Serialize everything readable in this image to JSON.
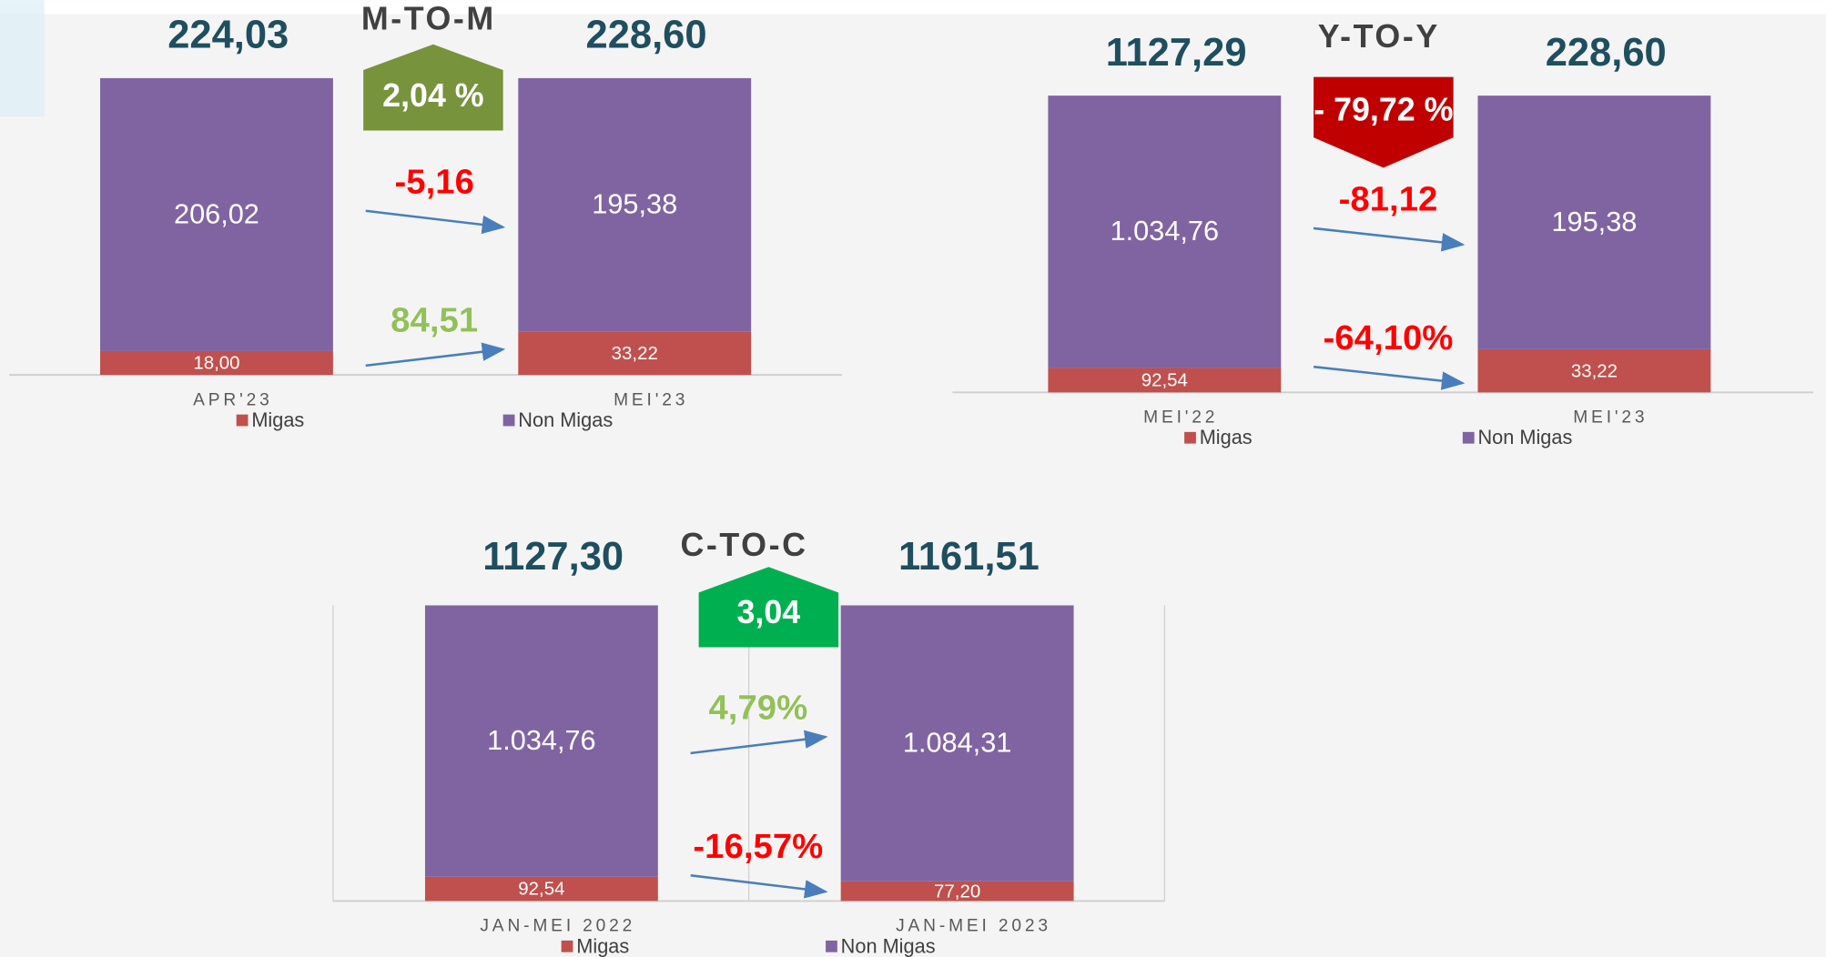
{
  "chart_data": [
    {
      "type": "bar",
      "stacked100": true,
      "title": "M-TO-M",
      "categories": [
        "APR'23",
        "MEI'23"
      ],
      "series": [
        {
          "name": "Migas",
          "color": "#c0504d",
          "values": [
            18.0,
            33.22
          ],
          "value_labels": [
            "18,00",
            "33,22"
          ],
          "change_label": "84,51",
          "change_color": "#92c05a",
          "change_direction": "up"
        },
        {
          "name": "Non Migas",
          "color": "#8064a2",
          "values": [
            206.02,
            195.38
          ],
          "value_labels": [
            "206,02",
            "195,38"
          ],
          "change_label": "-5,16",
          "change_color": "#ff0000",
          "change_direction": "down"
        }
      ],
      "totals": [
        224.03,
        228.6
      ],
      "total_labels": [
        "224,03",
        "228,60"
      ],
      "badge": {
        "label": "2,04 %",
        "color": "#77933c",
        "direction": "up"
      }
    },
    {
      "type": "bar",
      "stacked100": true,
      "title": "Y-TO-Y",
      "categories": [
        "MEI'22",
        "MEI'23"
      ],
      "series": [
        {
          "name": "Migas",
          "color": "#c0504d",
          "values": [
            92.54,
            33.22
          ],
          "value_labels": [
            "92,54",
            "33,22"
          ],
          "change_label": "-64,10%",
          "change_color": "#ff0000",
          "change_direction": "down"
        },
        {
          "name": "Non Migas",
          "color": "#8064a2",
          "values": [
            1034.76,
            195.38
          ],
          "value_labels": [
            "1.034,76",
            "195,38"
          ],
          "change_label": "-81,12",
          "change_color": "#ff0000",
          "change_direction": "down"
        }
      ],
      "totals": [
        1127.29,
        228.6
      ],
      "total_labels": [
        "1127,29",
        "228,60"
      ],
      "badge": {
        "label": "- 79,72 %",
        "color": "#c00000",
        "direction": "down"
      }
    },
    {
      "type": "bar",
      "stacked100": true,
      "title": "C-TO-C",
      "frame": true,
      "categories": [
        "JAN-MEI 2022",
        "JAN-MEI 2023"
      ],
      "series": [
        {
          "name": "Migas",
          "color": "#c0504d",
          "values": [
            92.54,
            77.2
          ],
          "value_labels": [
            "92,54",
            "77,20"
          ],
          "change_label": "-16,57%",
          "change_color": "#ff0000",
          "change_direction": "down"
        },
        {
          "name": "Non Migas",
          "color": "#8064a2",
          "values": [
            1034.76,
            1084.31
          ],
          "value_labels": [
            "1.034,76",
            "1.084,31"
          ],
          "change_label": "4,79%",
          "change_color": "#92c05a",
          "change_direction": "up"
        }
      ],
      "totals": [
        1127.3,
        1161.51
      ],
      "total_labels": [
        "1127,30",
        "1161,51"
      ],
      "badge": {
        "label": "3,04",
        "color": "#00b050",
        "direction": "up"
      }
    }
  ]
}
